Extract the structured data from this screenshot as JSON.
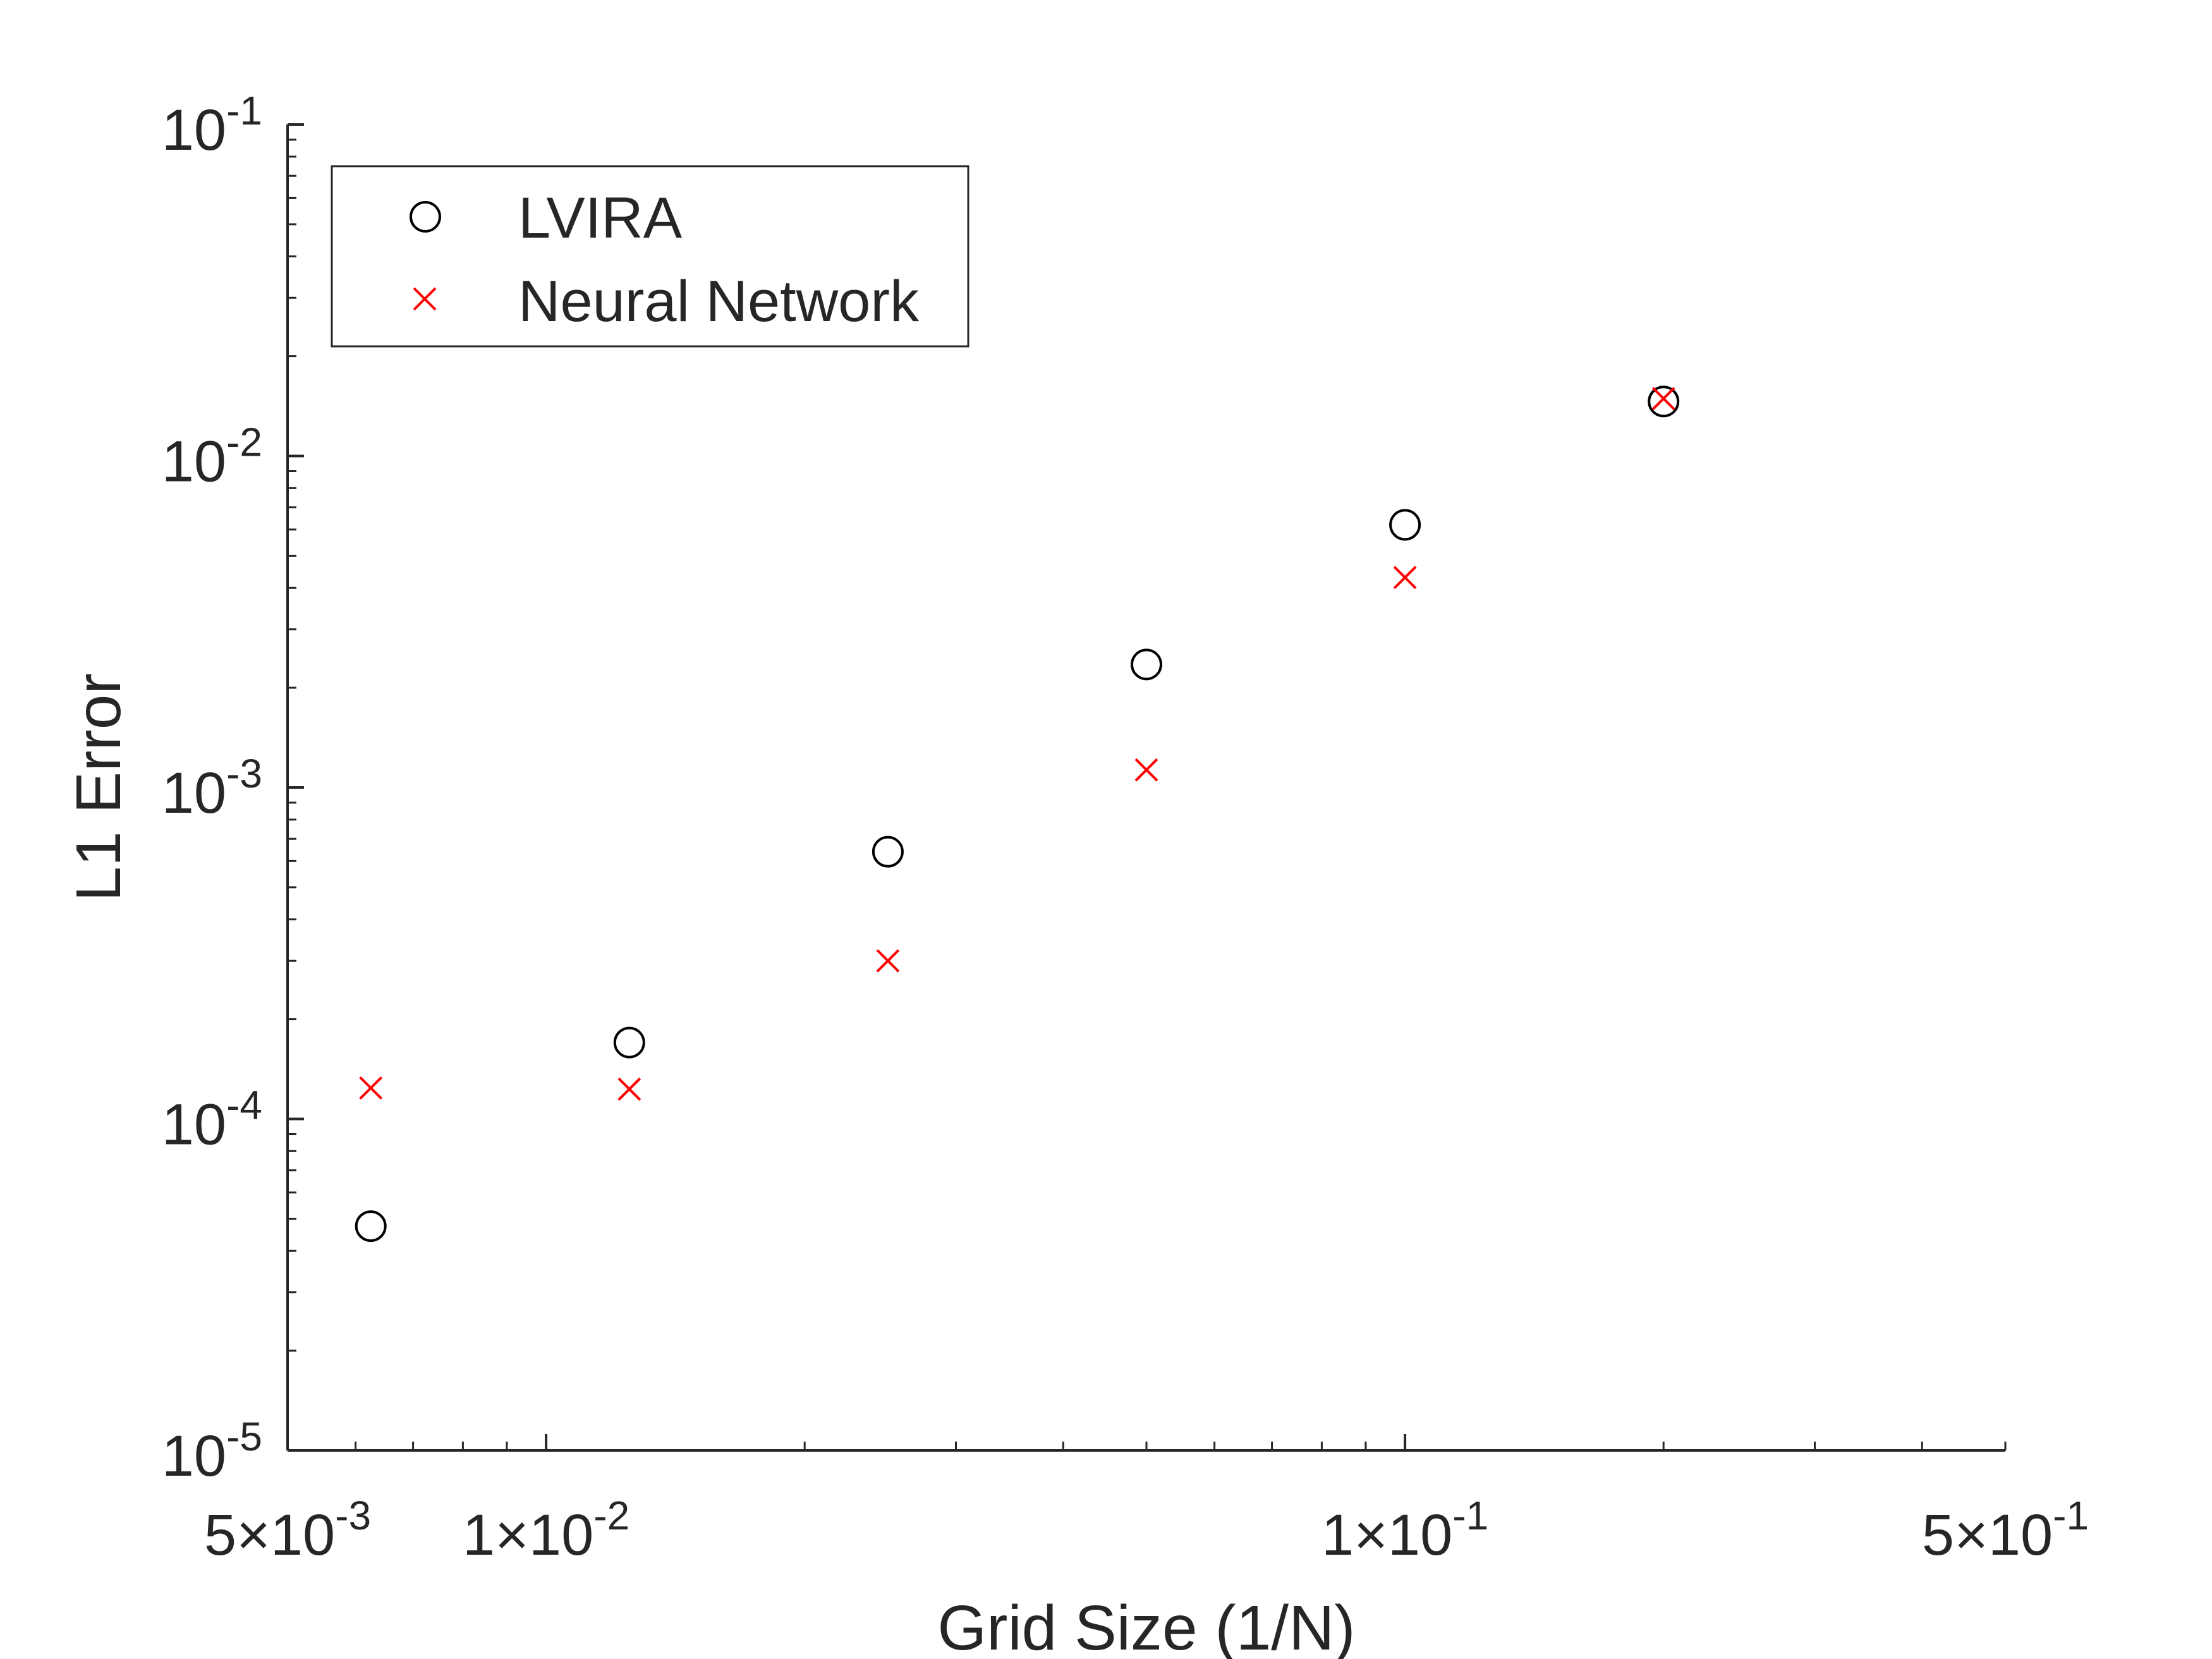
{
  "chart_data": {
    "type": "scatter",
    "title": "",
    "xlabel": "Grid Size (1/N)",
    "ylabel": "L1 Error",
    "xscale": "log",
    "yscale": "log",
    "xlim": [
      0.005,
      0.5
    ],
    "ylim": [
      1e-05,
      0.1
    ],
    "grid": false,
    "legend_position": "top-left",
    "x_ticks": [
      {
        "value": 0.005,
        "mantissa": "5",
        "exponent": "-3"
      },
      {
        "value": 0.01,
        "mantissa": "1",
        "exponent": "-2"
      },
      {
        "value": 0.1,
        "mantissa": "1",
        "exponent": "-1"
      },
      {
        "value": 0.5,
        "mantissa": "5",
        "exponent": "-1"
      }
    ],
    "y_ticks": [
      {
        "value": 1e-05,
        "base": "10",
        "exponent": "-5"
      },
      {
        "value": 0.0001,
        "base": "10",
        "exponent": "-4"
      },
      {
        "value": 0.001,
        "base": "10",
        "exponent": "-3"
      },
      {
        "value": 0.01,
        "base": "10",
        "exponent": "-2"
      },
      {
        "value": 0.1,
        "base": "10",
        "exponent": "-1"
      }
    ],
    "series": [
      {
        "name": "LVIRA",
        "marker": "circle",
        "color": "#000000",
        "x": [
          0.00625,
          0.0125,
          0.025,
          0.05,
          0.1,
          0.2
        ],
        "y": [
          4.75e-05,
          0.00017,
          0.00064,
          0.00235,
          0.0062,
          0.0146
        ]
      },
      {
        "name": "Neural Network",
        "marker": "x",
        "color": "#ff0000",
        "x": [
          0.00625,
          0.0125,
          0.025,
          0.05,
          0.1,
          0.2
        ],
        "y": [
          0.000124,
          0.000123,
          0.0003,
          0.00113,
          0.0043,
          0.0149
        ]
      }
    ]
  }
}
